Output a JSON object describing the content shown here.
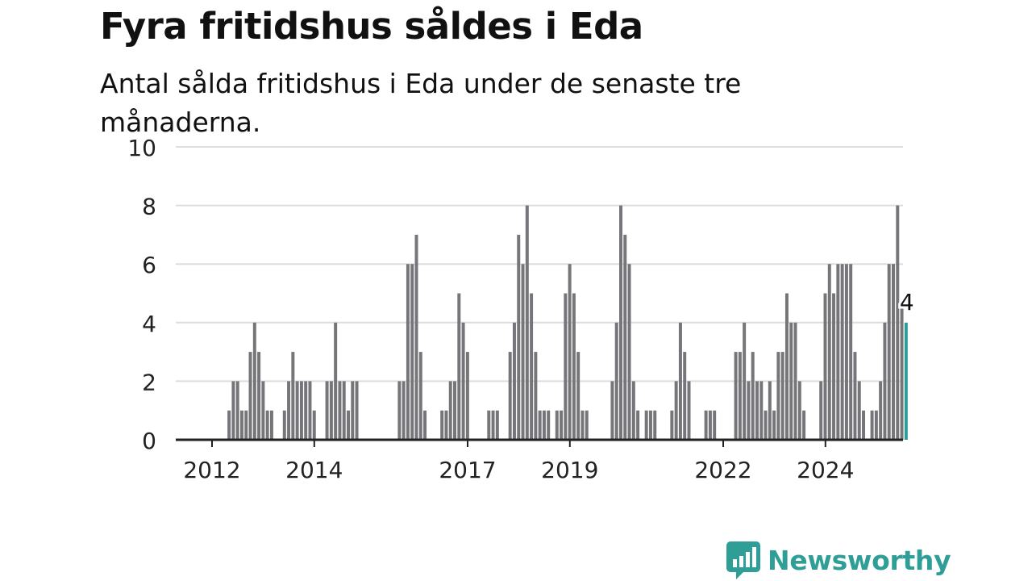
{
  "title": "Fyra fritidshus såldes i Eda",
  "subtitle": "Antal sålda fritidshus i Eda under de senaste tre månaderna.",
  "brand": {
    "name": "Newsworthy",
    "icon": "newsworthy-chart-bubble-icon",
    "color": "#2e9e97"
  },
  "colors": {
    "bar": "#76767a",
    "highlight": "#2a9d96",
    "grid": "#dddddd",
    "axis": "#222222"
  },
  "chart_data": {
    "type": "bar",
    "ylim": [
      0,
      10
    ],
    "yticks": [
      "0",
      "2",
      "4",
      "6",
      "8",
      "10"
    ],
    "x_start": 2012.0,
    "x_step": 0.0833,
    "xticks": [
      {
        "label": "2012",
        "year": 2012
      },
      {
        "label": "2014",
        "year": 2014
      },
      {
        "label": "2017",
        "year": 2017
      },
      {
        "label": "2019",
        "year": 2019
      },
      {
        "label": "2022",
        "year": 2022
      },
      {
        "label": "2024",
        "year": 2024
      }
    ],
    "values": [
      0,
      0,
      0,
      0,
      1,
      2,
      2,
      1,
      1,
      3,
      4,
      3,
      2,
      1,
      1,
      0,
      0,
      1,
      2,
      3,
      2,
      2,
      2,
      2,
      1,
      0,
      0,
      2,
      2,
      4,
      2,
      2,
      1,
      2,
      2,
      0,
      0,
      0,
      0,
      0,
      0,
      0,
      0,
      0,
      2,
      2,
      6,
      6,
      7,
      3,
      1,
      0,
      0,
      0,
      1,
      1,
      2,
      2,
      5,
      4,
      3,
      0,
      0,
      0,
      0,
      1,
      1,
      1,
      0,
      0,
      3,
      4,
      7,
      6,
      8,
      5,
      3,
      1,
      1,
      1,
      0,
      1,
      1,
      5,
      6,
      5,
      3,
      1,
      1,
      0,
      0,
      0,
      0,
      0,
      2,
      4,
      8,
      7,
      6,
      2,
      1,
      0,
      1,
      1,
      1,
      0,
      0,
      0,
      1,
      2,
      4,
      3,
      2,
      0,
      0,
      0,
      1,
      1,
      1,
      0,
      0,
      0,
      0,
      3,
      3,
      4,
      2,
      3,
      2,
      2,
      1,
      2,
      1,
      3,
      3,
      5,
      4,
      4,
      2,
      1,
      0,
      0,
      0,
      2,
      5,
      6,
      5,
      6,
      6,
      6,
      6,
      3,
      2,
      1,
      0,
      1,
      1,
      2,
      4,
      6,
      6,
      8,
      4.5,
      4
    ],
    "highlight_label": "4"
  }
}
